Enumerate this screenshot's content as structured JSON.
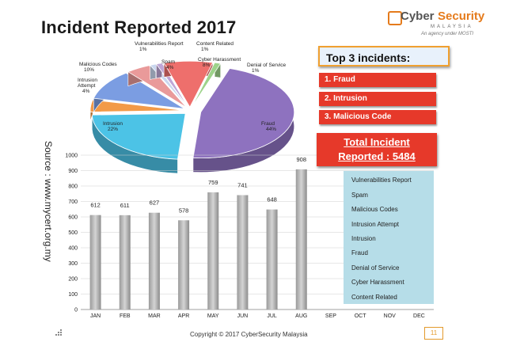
{
  "title": "Incident Reported 2017",
  "logo": {
    "word1": "Cyber",
    "word2": "Security",
    "sub": "MALAYSIA",
    "tagline": "An agency under MOSTI"
  },
  "source": "Source : www.mycert.org.my",
  "top3": {
    "heading": "Top 3 incidents:",
    "items": [
      "1. Fraud",
      "2. Intrusion",
      "3. Malicious Code"
    ]
  },
  "total": {
    "line1": "Total Incident",
    "line2": "Reported : 5484"
  },
  "copyright": "Copyright © 2017 CyberSecurity Malaysia",
  "page_number": "11",
  "colors": {
    "accent_red": "#e6392a",
    "accent_orange": "#f0a030",
    "legend_bg": "#b6dde8"
  },
  "chart_data": [
    {
      "type": "pie",
      "slices": [
        {
          "label": "Fraud",
          "percent": "44%",
          "value": 44,
          "color": "#8e72bf"
        },
        {
          "label": "Intrusion",
          "percent": "22%",
          "value": 22,
          "color": "#4cc3e6"
        },
        {
          "label": "Intrusion Attempt",
          "percent": "4%",
          "value": 4,
          "color": "#f29a48"
        },
        {
          "label": "Malicious Codes",
          "percent": "10%",
          "value": 10,
          "color": "#7b9de2"
        },
        {
          "label": "Spam",
          "percent": "4%",
          "value": 4,
          "color": "#e99a9a"
        },
        {
          "label": "Vulnerabilities Report",
          "percent": "1%",
          "value": 1,
          "color": "#c9d7ef"
        },
        {
          "label": "Content Related",
          "percent": "1%",
          "value": 1,
          "color": "#bfa6d6"
        },
        {
          "label": "Cyber Harassment",
          "percent": "8%",
          "value": 8,
          "color": "#ee6f6c"
        },
        {
          "label": "Denial of Service",
          "percent": "1%",
          "value": 1,
          "color": "#9ed38a"
        }
      ]
    },
    {
      "type": "bar",
      "categories": [
        "JAN",
        "FEB",
        "MAR",
        "APR",
        "MAY",
        "JUN",
        "JUL",
        "AUG",
        "SEP",
        "OCT",
        "NOV",
        "DEC"
      ],
      "values": [
        612,
        611,
        627,
        578,
        759,
        741,
        648,
        908,
        null,
        null,
        null,
        null
      ],
      "ylim": [
        0,
        1000
      ],
      "yticks": [
        0,
        100,
        200,
        300,
        400,
        500,
        600,
        700,
        800,
        900,
        1000
      ],
      "grid": true,
      "legend": {
        "placement": "right",
        "entries": [
          "Vulnerabilities Report",
          "Spam",
          "Malicious Codes",
          "Intrusion Attempt",
          "Intrusion",
          "Fraud",
          "Denial of Service",
          "Cyber Harassment",
          "Content Related"
        ]
      }
    }
  ]
}
